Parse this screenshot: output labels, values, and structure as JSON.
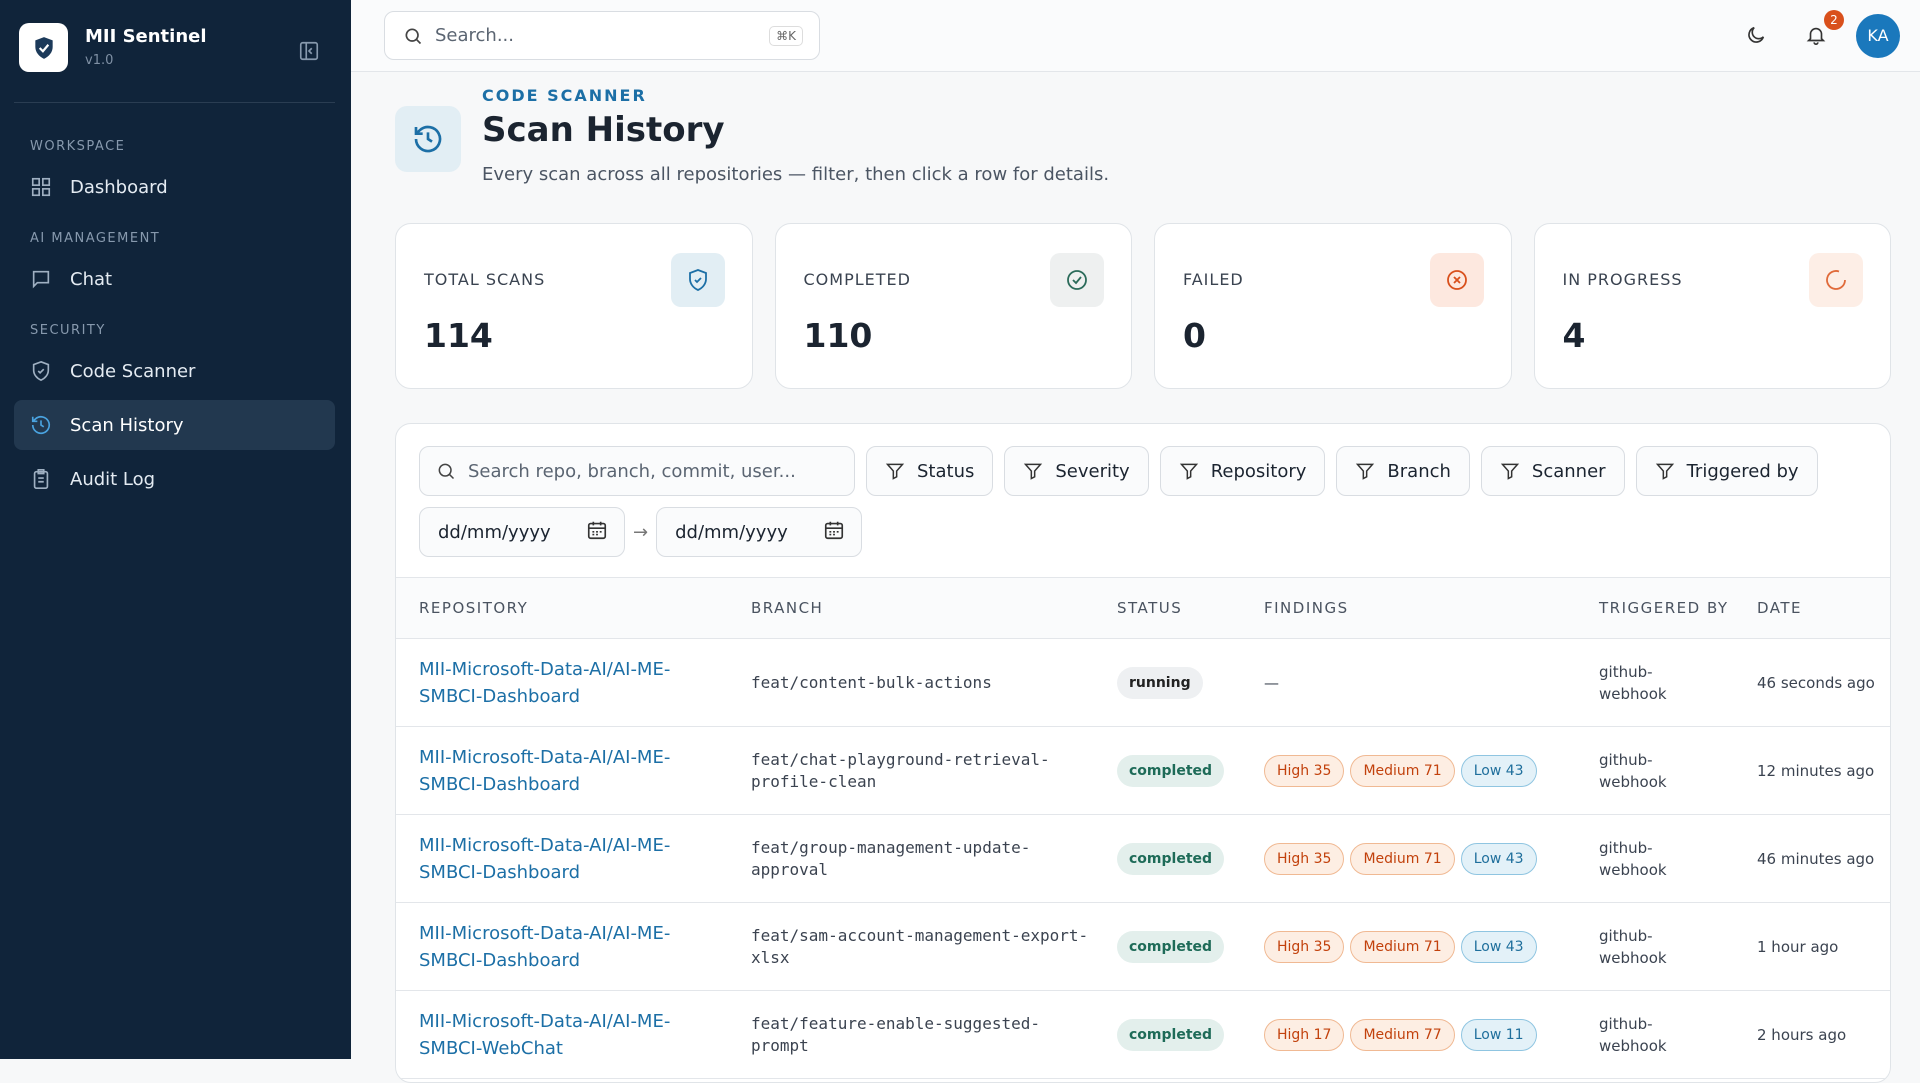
{
  "sidebar": {
    "app_name": "MII Sentinel",
    "version": "v1.0",
    "sections": [
      {
        "label": "WORKSPACE",
        "items": [
          "Dashboard"
        ]
      },
      {
        "label": "AI MANAGEMENT",
        "items": [
          "Chat"
        ]
      },
      {
        "label": "SECURITY",
        "items": [
          "Code Scanner",
          "Scan History",
          "Audit Log"
        ]
      }
    ],
    "active": "Scan History"
  },
  "topbar": {
    "search_placeholder": "Search...",
    "shortcut": "⌘K",
    "notification_count": 2,
    "avatar": "KA"
  },
  "header": {
    "eyebrow": "CODE SCANNER",
    "title": "Scan History",
    "subtitle": "Every scan across all repositories — filter, then click a row for details."
  },
  "stats": [
    {
      "label": "TOTAL SCANS",
      "value": 114
    },
    {
      "label": "COMPLETED",
      "value": 110
    },
    {
      "label": "FAILED",
      "value": 0
    },
    {
      "label": "IN PROGRESS",
      "value": 4
    }
  ],
  "filters": {
    "search_placeholder": "Search repo, branch, commit, user...",
    "buttons": [
      "Status",
      "Severity",
      "Repository",
      "Branch",
      "Scanner",
      "Triggered by"
    ],
    "date_from": "dd/mm/yyyy",
    "date_separator": "→",
    "date_to": "dd/mm/yyyy"
  },
  "table": {
    "columns": [
      "REPOSITORY",
      "BRANCH",
      "STATUS",
      "FINDINGS",
      "TRIGGERED BY",
      "DATE"
    ],
    "rows": [
      {
        "repository": "MII-Microsoft-Data-AI/AI-ME-SMBCI-Dashboard",
        "branch": "feat/content-bulk-actions",
        "status": "running",
        "findings": "—",
        "triggered_by": "github-webhook",
        "date": "46 seconds ago"
      },
      {
        "repository": "MII-Microsoft-Data-AI/AI-ME-SMBCI-Dashboard",
        "branch": "feat/chat-playground-retrieval-profile-clean",
        "status": "completed",
        "findings": [
          "High 35",
          "Medium 71",
          "Low 43"
        ],
        "triggered_by": "github-webhook",
        "date": "12 minutes ago"
      },
      {
        "repository": "MII-Microsoft-Data-AI/AI-ME-SMBCI-Dashboard",
        "branch": "feat/group-management-update-approval",
        "status": "completed",
        "findings": [
          "High 35",
          "Medium 71",
          "Low 43"
        ],
        "triggered_by": "github-webhook",
        "date": "46 minutes ago"
      },
      {
        "repository": "MII-Microsoft-Data-AI/AI-ME-SMBCI-Dashboard",
        "branch": "feat/sam-account-management-export-xlsx",
        "status": "completed",
        "findings": [
          "High 35",
          "Medium 71",
          "Low 43"
        ],
        "triggered_by": "github-webhook",
        "date": "1 hour ago"
      },
      {
        "repository": "MII-Microsoft-Data-AI/AI-ME-SMBCI-WebChat",
        "branch": "feat/feature-enable-suggested-prompt",
        "status": "completed",
        "findings": [
          "High 17",
          "Medium 77",
          "Low 11"
        ],
        "triggered_by": "github-webhook",
        "date": "2 hours ago"
      }
    ]
  }
}
